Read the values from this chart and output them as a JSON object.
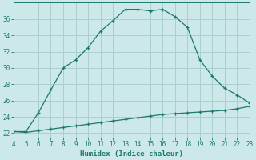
{
  "xlabel": "Humidex (Indice chaleur)",
  "bg_color": "#cce8e8",
  "grid_color": "#aacfcf",
  "line_color": "#1a7a6e",
  "xlim": [
    4,
    23
  ],
  "ylim": [
    21.5,
    38.0
  ],
  "xticks": [
    4,
    5,
    6,
    7,
    8,
    9,
    10,
    11,
    12,
    13,
    14,
    15,
    16,
    17,
    18,
    19,
    20,
    21,
    22,
    23
  ],
  "yticks": [
    22,
    24,
    26,
    28,
    30,
    32,
    34,
    36
  ],
  "curve1_x": [
    4,
    5,
    6,
    7,
    8,
    9,
    10,
    11,
    12,
    13,
    14,
    15,
    16,
    17,
    18,
    19,
    20,
    21,
    22,
    23
  ],
  "curve1_y": [
    22.2,
    22.2,
    24.5,
    27.3,
    30.0,
    31.0,
    32.5,
    34.5,
    35.8,
    37.2,
    37.2,
    37.0,
    37.2,
    36.3,
    35.0,
    31.0,
    29.0,
    27.5,
    26.7,
    25.7
  ],
  "curve2_x": [
    4,
    5,
    6,
    7,
    8,
    9,
    10,
    11,
    12,
    13,
    14,
    15,
    16,
    17,
    18,
    19,
    20,
    21,
    22,
    23
  ],
  "curve2_y": [
    22.2,
    22.1,
    22.3,
    22.5,
    22.7,
    22.9,
    23.1,
    23.3,
    23.5,
    23.7,
    23.9,
    24.1,
    24.3,
    24.4,
    24.5,
    24.6,
    24.7,
    24.8,
    25.0,
    25.3
  ]
}
